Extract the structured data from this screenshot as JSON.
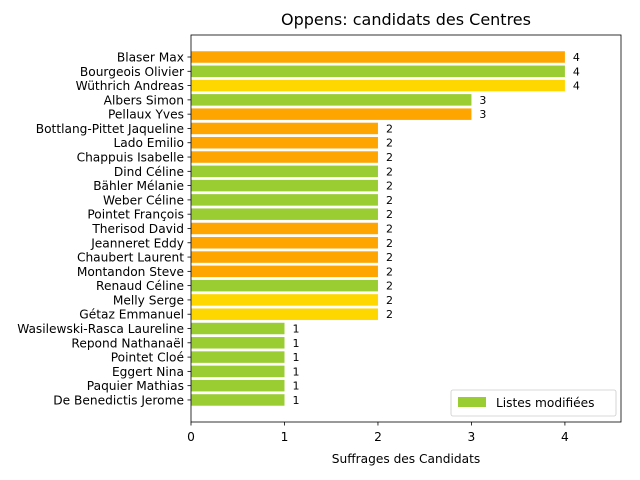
{
  "chart_data": {
    "type": "bar",
    "orientation": "horizontal",
    "title": "Oppens: candidats des Centres",
    "xlabel": "Suffrages des Candidats",
    "ylabel": "",
    "xlim": [
      0,
      4.6
    ],
    "xticks": [
      0,
      1,
      2,
      3,
      4
    ],
    "grid": false,
    "legend": {
      "placement": "lower-right",
      "entries": [
        {
          "label": "Listes modifiées",
          "color": "#9ACD32"
        }
      ]
    },
    "bars": [
      {
        "name": "Blaser Max",
        "value": 4,
        "color": "#FFA500"
      },
      {
        "name": "Bourgeois Olivier",
        "value": 4,
        "color": "#9ACD32"
      },
      {
        "name": "Wüthrich Andreas",
        "value": 4,
        "color": "#FFD700"
      },
      {
        "name": "Albers Simon",
        "value": 3,
        "color": "#9ACD32"
      },
      {
        "name": "Pellaux Yves",
        "value": 3,
        "color": "#FFA500"
      },
      {
        "name": "Bottlang-Pittet Jaqueline",
        "value": 2,
        "color": "#FFA500"
      },
      {
        "name": "Lado Emilio",
        "value": 2,
        "color": "#FFA500"
      },
      {
        "name": "Chappuis Isabelle",
        "value": 2,
        "color": "#FFA500"
      },
      {
        "name": "Dind Céline",
        "value": 2,
        "color": "#9ACD32"
      },
      {
        "name": "Bähler Mélanie",
        "value": 2,
        "color": "#9ACD32"
      },
      {
        "name": "Weber Céline",
        "value": 2,
        "color": "#9ACD32"
      },
      {
        "name": "Pointet François",
        "value": 2,
        "color": "#9ACD32"
      },
      {
        "name": "Therisod David",
        "value": 2,
        "color": "#FFA500"
      },
      {
        "name": "Jeanneret Eddy",
        "value": 2,
        "color": "#FFA500"
      },
      {
        "name": "Chaubert Laurent",
        "value": 2,
        "color": "#FFA500"
      },
      {
        "name": "Montandon Steve",
        "value": 2,
        "color": "#FFA500"
      },
      {
        "name": "Renaud Céline",
        "value": 2,
        "color": "#9ACD32"
      },
      {
        "name": "Melly Serge",
        "value": 2,
        "color": "#FFD700"
      },
      {
        "name": "Gétaz Emmanuel",
        "value": 2,
        "color": "#FFD700"
      },
      {
        "name": "Wasilewski-Rasca Laureline",
        "value": 1,
        "color": "#9ACD32"
      },
      {
        "name": "Repond Nathanaël",
        "value": 1,
        "color": "#9ACD32"
      },
      {
        "name": "Pointet Cloé",
        "value": 1,
        "color": "#9ACD32"
      },
      {
        "name": "Eggert Nina",
        "value": 1,
        "color": "#9ACD32"
      },
      {
        "name": "Paquier Mathias",
        "value": 1,
        "color": "#9ACD32"
      },
      {
        "name": "De Benedictis Jerome",
        "value": 1,
        "color": "#9ACD32"
      }
    ]
  }
}
